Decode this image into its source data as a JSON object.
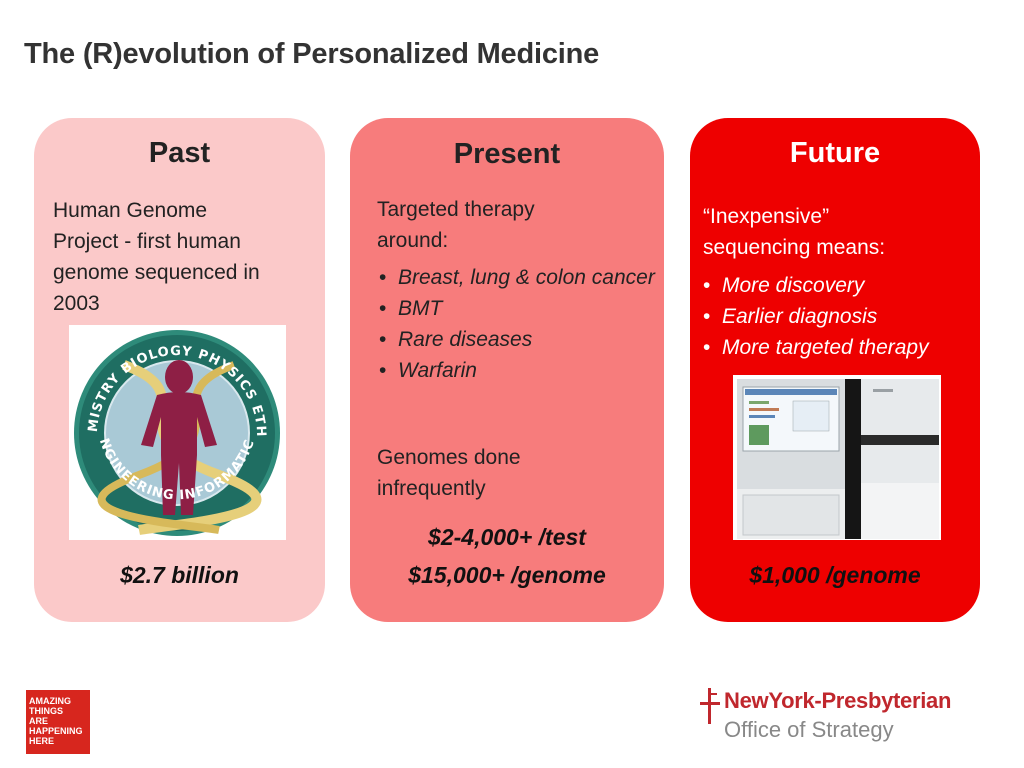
{
  "slide": {
    "title": "The (R)evolution of Personalized Medicine"
  },
  "colors": {
    "past": "#fbc9c9",
    "present": "#f77c7c",
    "future": "#ee0000",
    "brand_red": "#c0272d"
  },
  "past": {
    "heading": "Past",
    "lines": [
      "Human Genome",
      "Project - first human",
      "genome sequenced in",
      "2003"
    ],
    "image_icon": "human-genome-project-seal",
    "seal_words": [
      "BIOLOGY",
      "PHYSICS",
      "ETHICS",
      "INFORMATICS",
      "ENGINEERING",
      "CHEMISTRY"
    ],
    "price": "$2.7 billion"
  },
  "present": {
    "heading": "Present",
    "intro_lines": [
      "Targeted therapy",
      "around:"
    ],
    "bullets": [
      "Breast, lung & colon cancer",
      "BMT",
      "Rare diseases",
      "Warfarin"
    ],
    "outro_lines": [
      "Genomes done",
      "infrequently"
    ],
    "price_test": "$2-4,000+ /test",
    "price_genome": "$15,000+ /genome"
  },
  "future": {
    "heading": "Future",
    "intro_lines": [
      "“Inexpensive”",
      "sequencing means:"
    ],
    "bullets": [
      "More discovery",
      "Earlier diagnosis",
      "More targeted therapy"
    ],
    "image_icon": "dna-sequencer-machine",
    "price": "$1,000 /genome"
  },
  "footer": {
    "badge_lines": [
      "AMAZING",
      "THINGS",
      "ARE",
      "HAPPENING",
      "HERE"
    ],
    "org_name": "NewYork-Presbyterian",
    "org_unit": "Office of Strategy"
  }
}
